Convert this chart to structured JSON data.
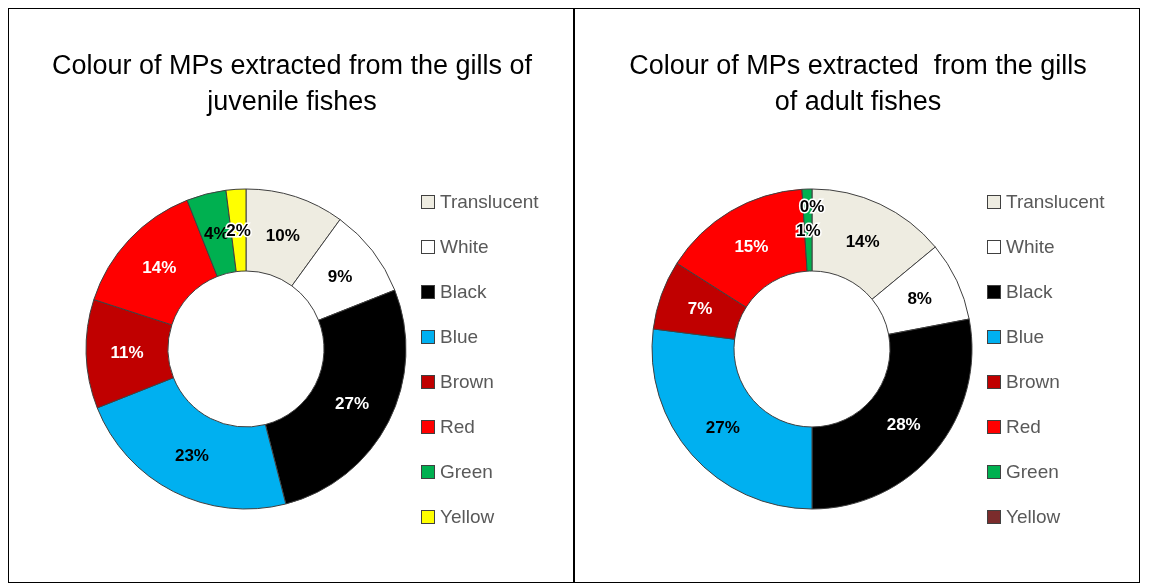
{
  "chart_data": [
    {
      "type": "donut",
      "title": "Colour of MPs extracted from the gills of juvenile fishes",
      "categories": [
        "Translucent",
        "White",
        "Black",
        "Blue",
        "Brown",
        "Red",
        "Green",
        "Yellow"
      ],
      "values": [
        10,
        9,
        27,
        23,
        11,
        14,
        4,
        2
      ],
      "value_labels": [
        "10%",
        "9%",
        "27%",
        "23%",
        "11%",
        "14%",
        "4%",
        "2%"
      ],
      "colors": [
        "#eeece1",
        "#ffffff",
        "#000000",
        "#00b0f0",
        "#c00000",
        "#ff0000",
        "#00b050",
        "#ffff00"
      ],
      "legend": "right"
    },
    {
      "type": "donut",
      "title": "Colour of MPs extracted  from the gills of adult fishes",
      "categories": [
        "Translucent",
        "White",
        "Black",
        "Blue",
        "Brown",
        "Red",
        "Green",
        "Yellow"
      ],
      "values": [
        14,
        8,
        28,
        27,
        7,
        15,
        1,
        0
      ],
      "value_labels": [
        "14%",
        "8%",
        "28%",
        "27%",
        "7%",
        "15%",
        "1%",
        "0%"
      ],
      "colors": [
        "#eeece1",
        "#ffffff",
        "#000000",
        "#00b0f0",
        "#c00000",
        "#ff0000",
        "#00b050",
        "#7b2c2c"
      ],
      "legend": "right"
    }
  ]
}
